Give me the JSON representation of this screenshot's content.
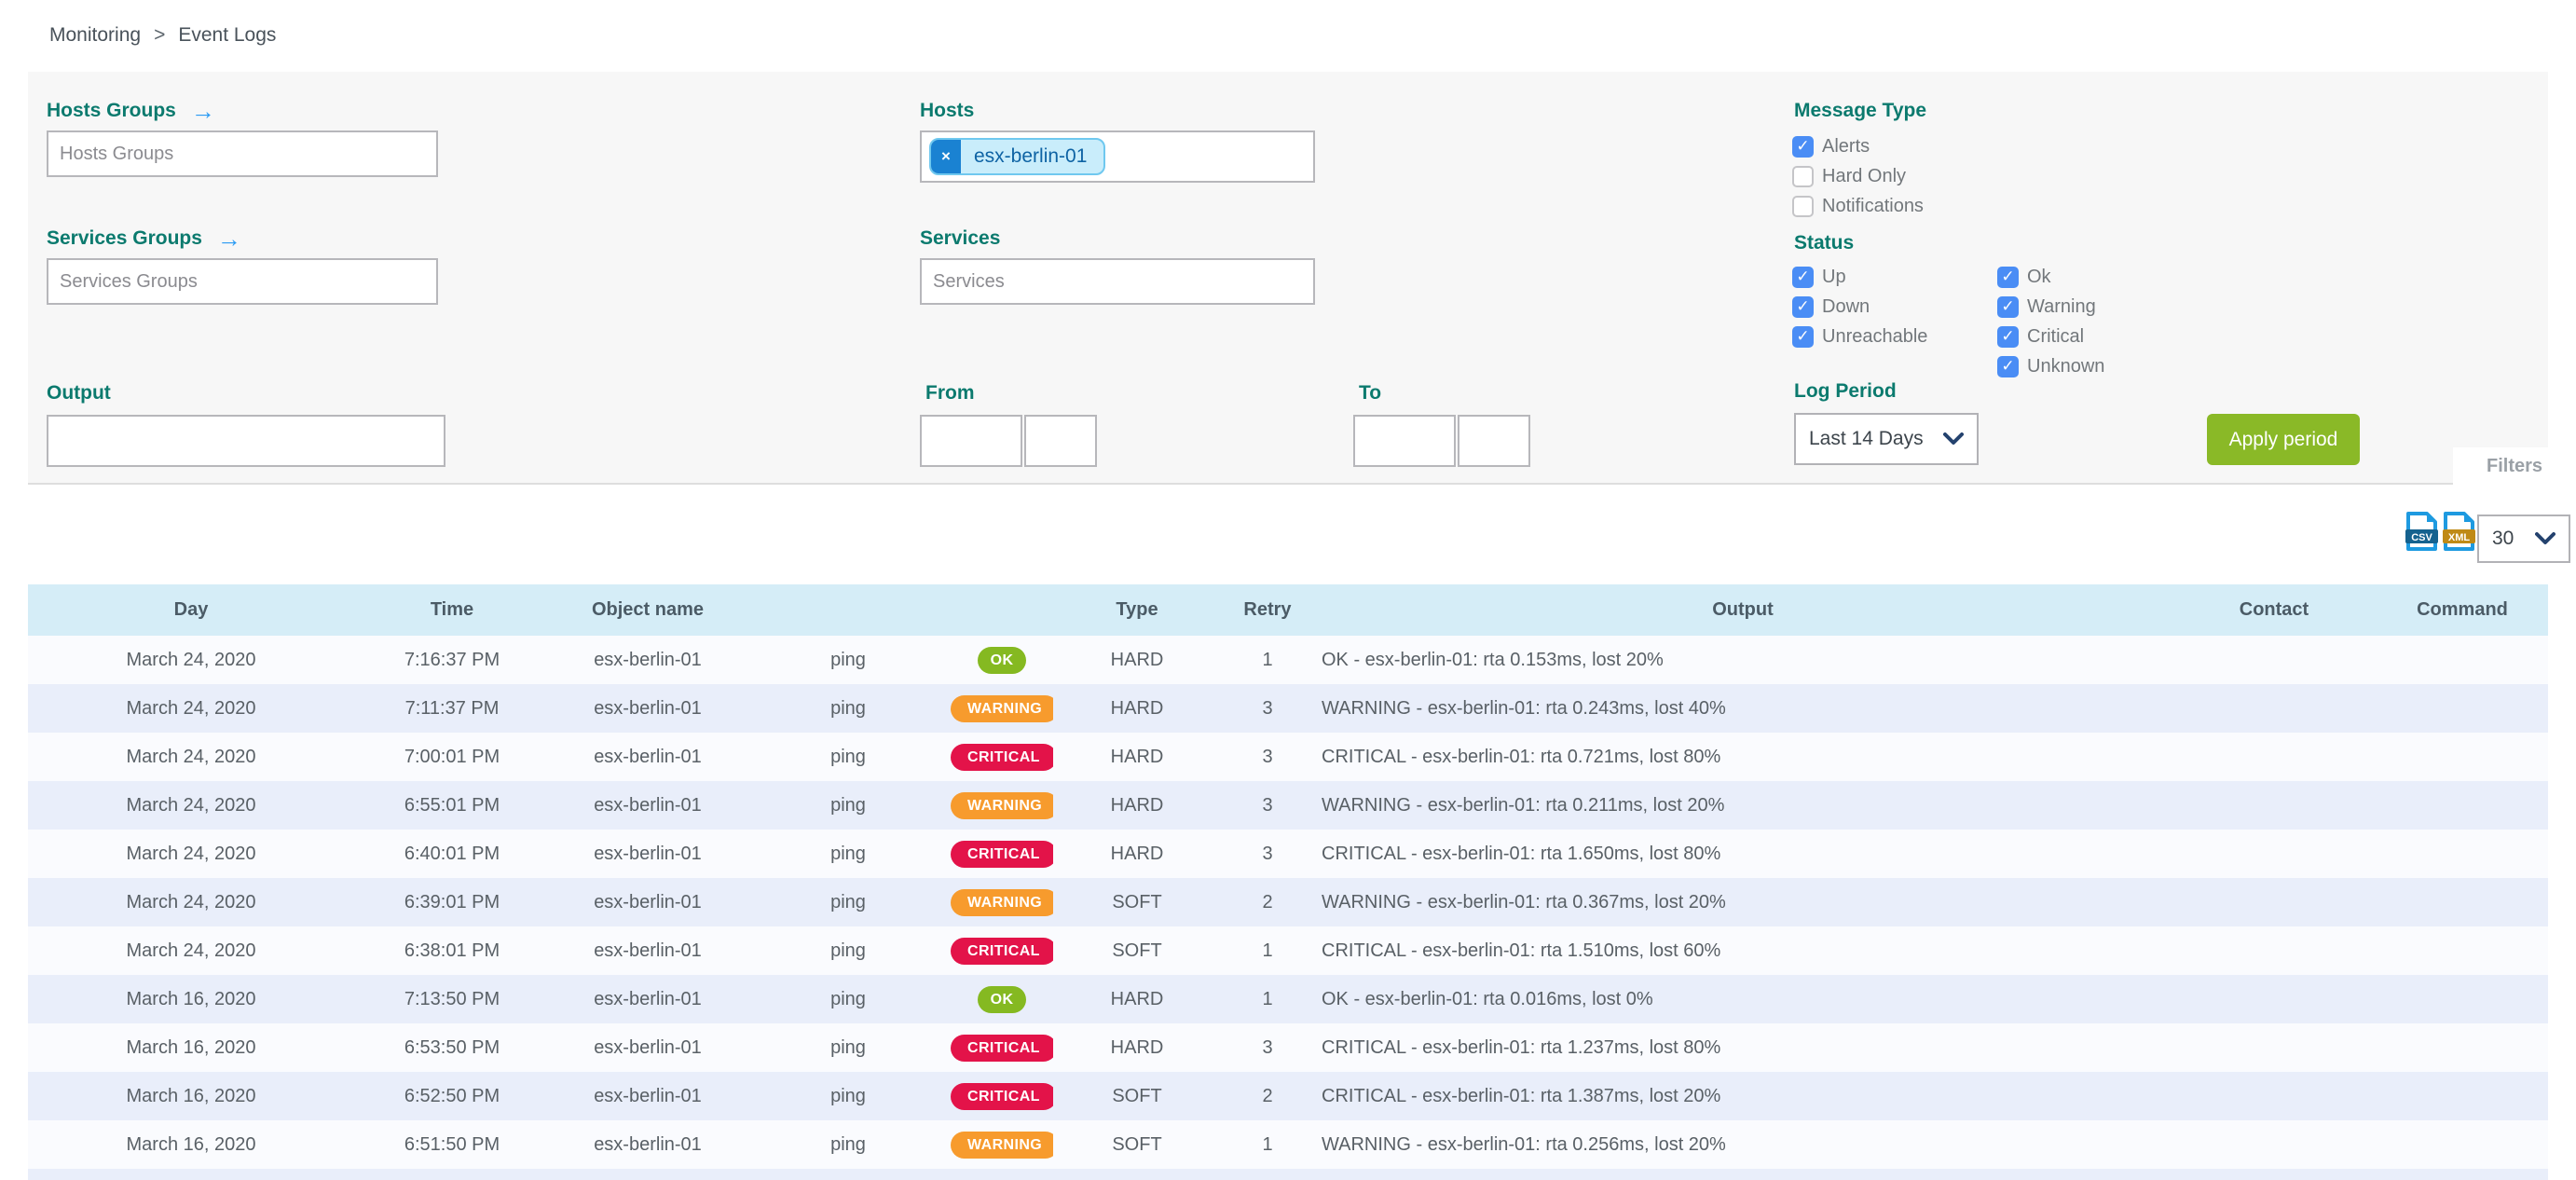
{
  "breadcrumb": {
    "items": [
      "Monitoring",
      "Event Logs"
    ],
    "separator": ">"
  },
  "filters": {
    "hosts_groups": {
      "label": "Hosts Groups",
      "placeholder": "Hosts Groups",
      "value": ""
    },
    "services_groups": {
      "label": "Services Groups",
      "placeholder": "Services Groups",
      "value": ""
    },
    "hosts": {
      "label": "Hosts",
      "selected": "esx-berlin-01"
    },
    "services": {
      "label": "Services",
      "placeholder": "Services",
      "value": ""
    },
    "output": {
      "label": "Output",
      "value": ""
    },
    "from": {
      "label": "From",
      "date_value": "",
      "time_value": ""
    },
    "to": {
      "label": "To",
      "date_value": "",
      "time_value": ""
    },
    "message_type": {
      "label": "Message Type",
      "options": [
        {
          "label": "Alerts",
          "checked": true
        },
        {
          "label": "Hard Only",
          "checked": false
        },
        {
          "label": "Notifications",
          "checked": false
        }
      ]
    },
    "status": {
      "label": "Status",
      "columns": [
        [
          {
            "label": "Up",
            "checked": true
          },
          {
            "label": "Down",
            "checked": true
          },
          {
            "label": "Unreachable",
            "checked": true
          }
        ],
        [
          {
            "label": "Ok",
            "checked": true
          },
          {
            "label": "Warning",
            "checked": true
          },
          {
            "label": "Critical",
            "checked": true
          },
          {
            "label": "Unknown",
            "checked": true
          }
        ]
      ]
    },
    "log_period": {
      "label": "Log Period",
      "selected": "Last 14 Days"
    },
    "apply_button_label": "Apply period",
    "filters_tab_label": "Filters"
  },
  "icons": {
    "remove_glyph": "×",
    "arrow_right_glyph": "→",
    "export": [
      {
        "name": "csv-file-icon",
        "text": "CSV"
      },
      {
        "name": "xml-file-icon",
        "text": "XML"
      }
    ]
  },
  "toolbar": {
    "page_size": "30"
  },
  "table": {
    "headers": [
      "Day",
      "Time",
      "Object name",
      "",
      "",
      "Type",
      "Retry",
      "Output",
      "Contact",
      "Command"
    ],
    "rows": [
      {
        "day": "March 24, 2020",
        "time": "7:16:37 PM",
        "object": "esx-berlin-01",
        "service": "ping",
        "status": "OK",
        "type": "HARD",
        "retry": "1",
        "output": "OK - esx-berlin-01: rta 0.153ms, lost 20%",
        "contact": "",
        "command": ""
      },
      {
        "day": "March 24, 2020",
        "time": "7:11:37 PM",
        "object": "esx-berlin-01",
        "service": "ping",
        "status": "WARNING",
        "type": "HARD",
        "retry": "3",
        "output": "WARNING - esx-berlin-01: rta 0.243ms, lost 40%",
        "contact": "",
        "command": ""
      },
      {
        "day": "March 24, 2020",
        "time": "7:00:01 PM",
        "object": "esx-berlin-01",
        "service": "ping",
        "status": "CRITICAL",
        "type": "HARD",
        "retry": "3",
        "output": "CRITICAL - esx-berlin-01: rta 0.721ms, lost 80%",
        "contact": "",
        "command": ""
      },
      {
        "day": "March 24, 2020",
        "time": "6:55:01 PM",
        "object": "esx-berlin-01",
        "service": "ping",
        "status": "WARNING",
        "type": "HARD",
        "retry": "3",
        "output": "WARNING - esx-berlin-01: rta 0.211ms, lost 20%",
        "contact": "",
        "command": ""
      },
      {
        "day": "March 24, 2020",
        "time": "6:40:01 PM",
        "object": "esx-berlin-01",
        "service": "ping",
        "status": "CRITICAL",
        "type": "HARD",
        "retry": "3",
        "output": "CRITICAL - esx-berlin-01: rta 1.650ms, lost 80%",
        "contact": "",
        "command": ""
      },
      {
        "day": "March 24, 2020",
        "time": "6:39:01 PM",
        "object": "esx-berlin-01",
        "service": "ping",
        "status": "WARNING",
        "type": "SOFT",
        "retry": "2",
        "output": "WARNING - esx-berlin-01: rta 0.367ms, lost 20%",
        "contact": "",
        "command": ""
      },
      {
        "day": "March 24, 2020",
        "time": "6:38:01 PM",
        "object": "esx-berlin-01",
        "service": "ping",
        "status": "CRITICAL",
        "type": "SOFT",
        "retry": "1",
        "output": "CRITICAL - esx-berlin-01: rta 1.510ms, lost 60%",
        "contact": "",
        "command": ""
      },
      {
        "day": "March 16, 2020",
        "time": "7:13:50 PM",
        "object": "esx-berlin-01",
        "service": "ping",
        "status": "OK",
        "type": "HARD",
        "retry": "1",
        "output": "OK - esx-berlin-01: rta 0.016ms, lost 0%",
        "contact": "",
        "command": ""
      },
      {
        "day": "March 16, 2020",
        "time": "6:53:50 PM",
        "object": "esx-berlin-01",
        "service": "ping",
        "status": "CRITICAL",
        "type": "HARD",
        "retry": "3",
        "output": "CRITICAL - esx-berlin-01: rta 1.237ms, lost 80%",
        "contact": "",
        "command": ""
      },
      {
        "day": "March 16, 2020",
        "time": "6:52:50 PM",
        "object": "esx-berlin-01",
        "service": "ping",
        "status": "CRITICAL",
        "type": "SOFT",
        "retry": "2",
        "output": "CRITICAL - esx-berlin-01: rta 1.387ms, lost 20%",
        "contact": "",
        "command": ""
      },
      {
        "day": "March 16, 2020",
        "time": "6:51:50 PM",
        "object": "esx-berlin-01",
        "service": "ping",
        "status": "WARNING",
        "type": "SOFT",
        "retry": "1",
        "output": "WARNING - esx-berlin-01: rta 0.256ms, lost 20%",
        "contact": "",
        "command": ""
      }
    ]
  },
  "colors": {
    "label_teal": "#0b7a6e",
    "arrow_blue": "#2b9bf3",
    "checkbox_blue": "#4a8df5",
    "chip_dark_blue": "#1a82d2",
    "chip_light_blue": "#c9edfb",
    "apply_green": "#8ab927",
    "header_blue": "#d5edf7",
    "row_even": "#e9eefa",
    "row_odd": "#fafbfe",
    "badge_ok": "#85b921",
    "badge_warning": "#f79b2d",
    "badge_critical": "#e31349"
  }
}
